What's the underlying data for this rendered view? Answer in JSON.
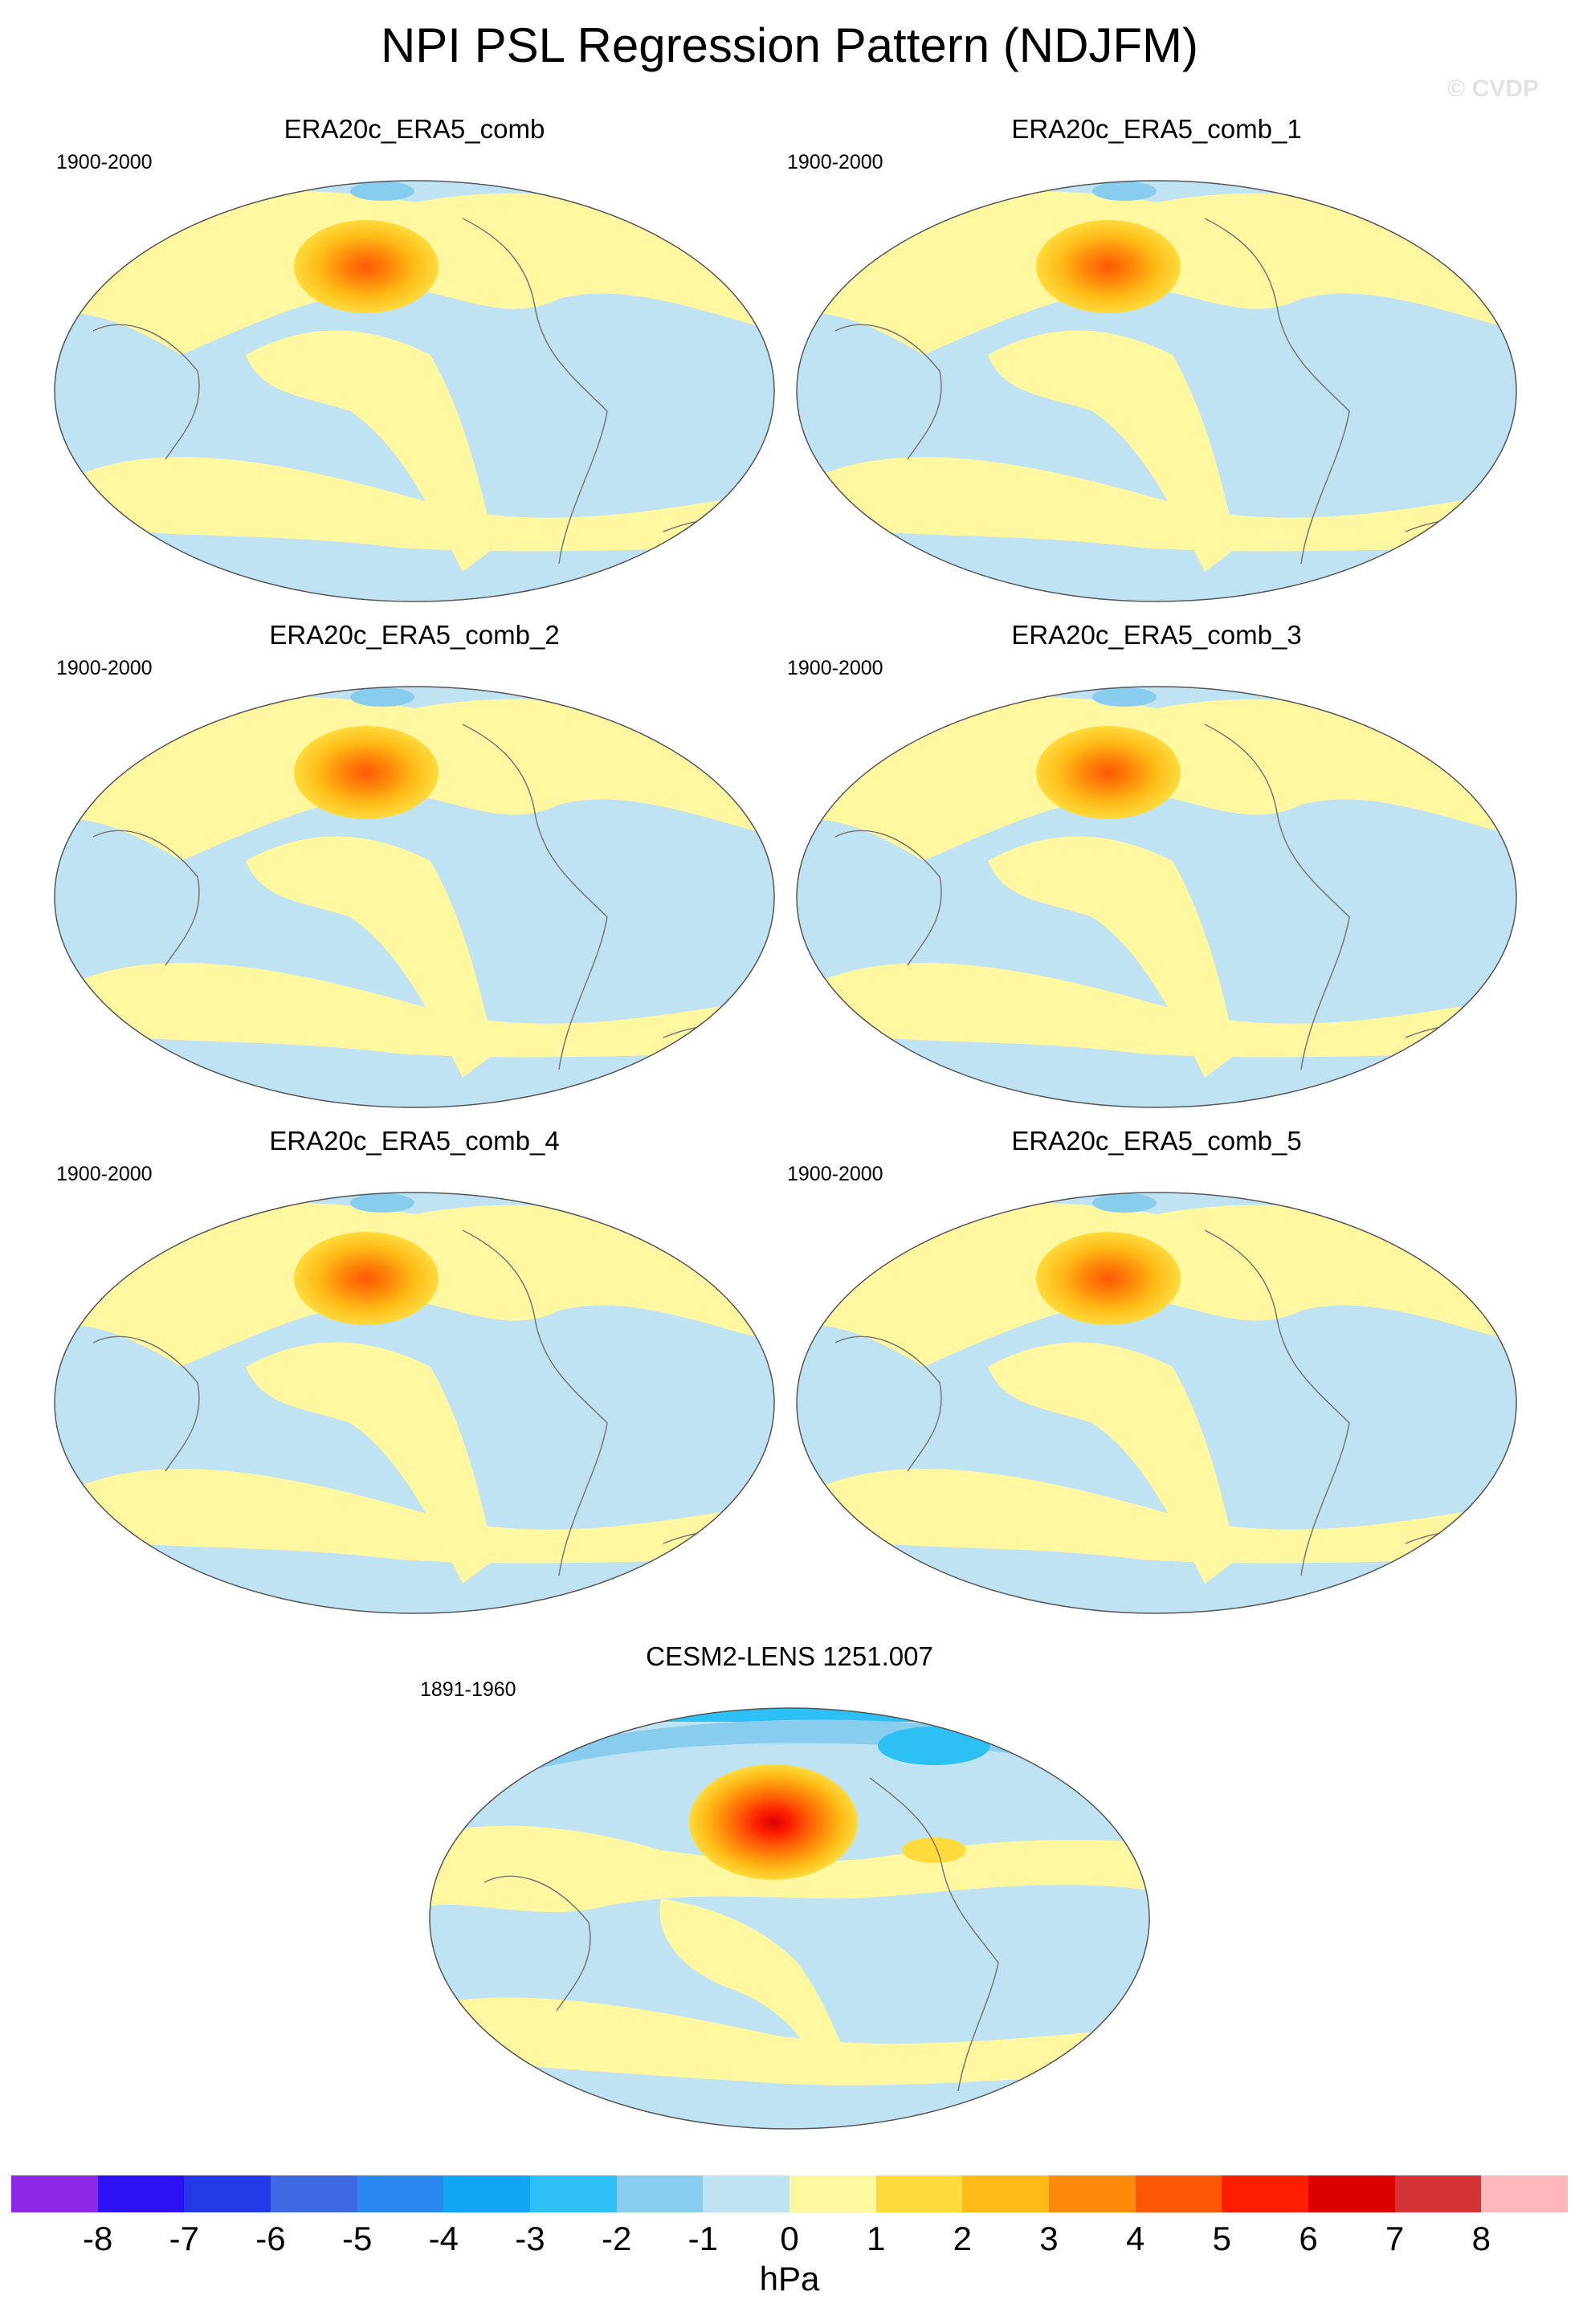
{
  "title": "NPI PSL Regression Pattern (NDJFM)",
  "credit": "© CVDP",
  "panels": [
    {
      "title": "ERA20c_ERA5_comb",
      "period": "1900-2000"
    },
    {
      "title": "ERA20c_ERA5_comb_1",
      "period": "1900-2000"
    },
    {
      "title": "ERA20c_ERA5_comb_2",
      "period": "1900-2000"
    },
    {
      "title": "ERA20c_ERA5_comb_3",
      "period": "1900-2000"
    },
    {
      "title": "ERA20c_ERA5_comb_4",
      "period": "1900-2000"
    },
    {
      "title": "ERA20c_ERA5_comb_5",
      "period": "1900-2000"
    },
    {
      "title": "CESM2-LENS 1251.007",
      "period": "1891-1960"
    }
  ],
  "colorbar": {
    "unit": "hPa",
    "ticks": [
      "-8",
      "-7",
      "-6",
      "-5",
      "-4",
      "-3",
      "-2",
      "-1",
      "0",
      "1",
      "2",
      "3",
      "4",
      "5",
      "6",
      "7",
      "8"
    ],
    "colors": [
      "#8c28e6",
      "#2d10f5",
      "#2038e6",
      "#3e69e0",
      "#2a86f0",
      "#12a5f5",
      "#2cc0f5",
      "#88ccee",
      "#bfe3f2",
      "#fff8a0",
      "#fedb3c",
      "#feba16",
      "#fe8a0a",
      "#fe5806",
      "#fe1e00",
      "#dc0000",
      "#d43236",
      "#ffb6bb"
    ]
  }
}
